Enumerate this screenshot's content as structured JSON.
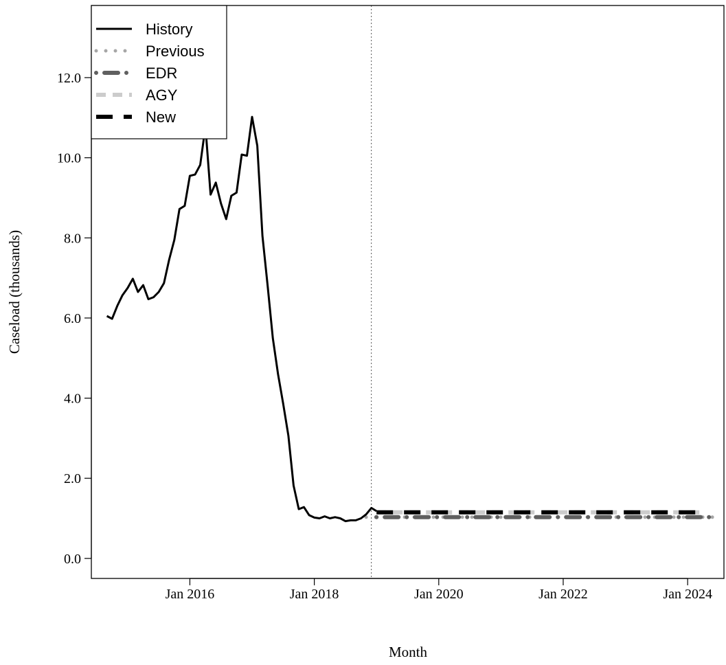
{
  "chart_data": {
    "type": "line",
    "xlabel": "Month",
    "ylabel": "Caseload (thousands)",
    "x_range": [
      "2014-06",
      "2024-08"
    ],
    "ylim": [
      -0.5,
      13.8
    ],
    "y_ticks": [
      "0.0",
      "2.0",
      "4.0",
      "6.0",
      "8.0",
      "10.0",
      "12.0"
    ],
    "x_ticks": [
      "Jan 2016",
      "Jan 2018",
      "Jan 2020",
      "Jan 2022",
      "Jan 2024"
    ],
    "forecast_start_line": "2018-12",
    "grid": false,
    "legend_position": "top-left",
    "legend": [
      "History",
      "Previous",
      "EDR",
      "AGY",
      "New"
    ],
    "series": [
      {
        "name": "History",
        "color": "#000000",
        "style": "solid",
        "start": "2014-09",
        "values": [
          6.05,
          5.98,
          6.3,
          6.57,
          6.75,
          6.98,
          6.65,
          6.82,
          6.47,
          6.52,
          6.65,
          6.87,
          7.45,
          7.95,
          8.72,
          8.8,
          9.55,
          9.58,
          9.82,
          10.78,
          9.08,
          9.38,
          8.86,
          8.47,
          9.05,
          9.13,
          10.08,
          10.05,
          11.02,
          10.3,
          8.05,
          6.8,
          5.5,
          4.6,
          3.86,
          3.06,
          1.82,
          1.23,
          1.28,
          1.08,
          1.02,
          1.0,
          1.05,
          1.0,
          1.03,
          1.0,
          0.93,
          0.95,
          0.95,
          1.0,
          1.1,
          1.26,
          1.18
        ]
      },
      {
        "name": "Previous",
        "color": "#a6a6a6",
        "style": "dotted",
        "start": "2018-11",
        "end": "2024-06",
        "value": 1.03
      },
      {
        "name": "EDR",
        "color": "#606060",
        "style": "dotdash",
        "start": "2019-01",
        "end": "2024-06",
        "value": 1.03
      },
      {
        "name": "AGY",
        "color": "#cccccc",
        "style": "dashed",
        "start": "2019-01",
        "end": "2024-04",
        "value": 1.15
      },
      {
        "name": "New",
        "color": "#000000",
        "style": "longdash",
        "start": "2019-01",
        "end": "2024-04",
        "value": 1.15
      }
    ]
  }
}
